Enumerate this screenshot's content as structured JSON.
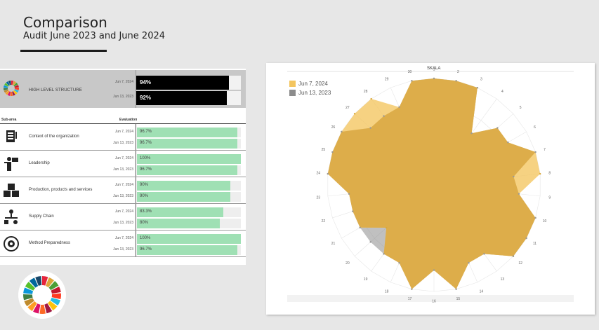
{
  "header": {
    "title": "Comparison",
    "subtitle": "Audit June 2023 and June 2024"
  },
  "hls": {
    "label": "HIGH LEVEL STRUCTURE",
    "date1": "Jun 7, 2024",
    "date2": "Jun 13, 2023",
    "value1": "94%",
    "value2": "92%",
    "pct1": 0.94,
    "pct2": 0.92
  },
  "table": {
    "col_subarea": "Sub-area",
    "col_eval": "Evaluation",
    "rows": [
      {
        "label": "Context of the organization",
        "icon": "document-icon",
        "date1": "Jun 7, 2024",
        "date2": "Jun 13, 2023",
        "value1": "96.7%",
        "value2": "96.7%",
        "pct1": 0.967,
        "pct2": 0.967
      },
      {
        "label": "Leadership",
        "icon": "leader-icon",
        "date1": "Jun 7, 2024",
        "date2": "Jun 13, 2023",
        "value1": "100%",
        "value2": "96.7%",
        "pct1": 1.0,
        "pct2": 0.967
      },
      {
        "label": "Production, products and services",
        "icon": "boxes-icon",
        "date1": "Jun 7, 2024",
        "date2": "Jun 13, 2023",
        "value1": "90%",
        "value2": "90%",
        "pct1": 0.9,
        "pct2": 0.9
      },
      {
        "label": "Supply Chain",
        "icon": "supply-chain-icon",
        "date1": "Jun 7, 2024",
        "date2": "Jun 13, 2023",
        "value1": "83.3%",
        "value2": "80%",
        "pct1": 0.833,
        "pct2": 0.8
      },
      {
        "label": "Method Preparedness",
        "icon": "gear-cycle-icon",
        "date1": "Jun 7, 2024",
        "date2": "Jun 13, 2023",
        "value1": "100%",
        "value2": "96.7%",
        "pct1": 1.0,
        "pct2": 0.967
      }
    ]
  },
  "colors": {
    "series_2024": "#f3c55f",
    "series_2023": "#8c8c8c",
    "overlap": "#dbab46",
    "bar_green": "#9fe0b4"
  },
  "chart_data": {
    "type": "radar",
    "title": "SKALA",
    "categories": [
      "1",
      "2",
      "3",
      "4",
      "5",
      "6",
      "7",
      "8",
      "9",
      "10",
      "11",
      "12",
      "13",
      "14",
      "15",
      "16",
      "17",
      "18",
      "19",
      "20",
      "21",
      "22",
      "23",
      "24",
      "25",
      "26",
      "27",
      "28",
      "29",
      "30"
    ],
    "rmax": 100,
    "series": [
      {
        "name": "Jun 7, 2024",
        "color": "#f3c55f",
        "values": [
          100,
          100,
          100,
          60,
          80,
          80,
          100,
          100,
          80,
          100,
          100,
          100,
          80,
          80,
          100,
          80,
          100,
          80,
          80,
          60,
          80,
          80,
          80,
          100,
          100,
          100,
          100,
          100,
          80,
          100
        ]
      },
      {
        "name": "Jun 13, 2023",
        "color": "#8c8c8c",
        "values": [
          100,
          100,
          100,
          60,
          80,
          80,
          100,
          75,
          80,
          100,
          100,
          100,
          80,
          80,
          100,
          80,
          100,
          80,
          80,
          80,
          80,
          80,
          80,
          100,
          100,
          100,
          80,
          80,
          80,
          100
        ]
      }
    ]
  }
}
